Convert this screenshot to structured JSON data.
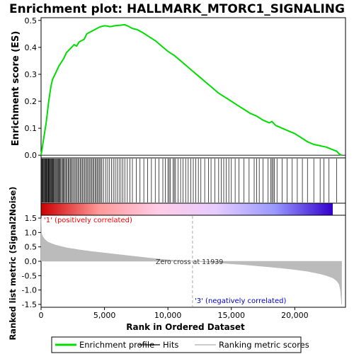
{
  "chart_data": {
    "type": "line",
    "title": "Enrichment plot: HALLMARK_MTORC1_SIGNALING",
    "xlabel": "Rank in Ordered Dataset",
    "xlim": [
      0,
      24000
    ],
    "x_ticks": [
      0,
      5000,
      10000,
      15000,
      20000
    ],
    "x_tick_labels": [
      "0",
      "5,000",
      "10,000",
      "15,000",
      "20,000"
    ],
    "top_panel": {
      "ylabel": "Enrichment score (ES)",
      "ylim": [
        -0.01,
        0.51
      ],
      "y_ticks": [
        0.0,
        0.1,
        0.2,
        0.3,
        0.4,
        0.5
      ],
      "y_tick_labels": [
        "0.0",
        "0.1",
        "0.2",
        "0.3",
        "0.4",
        "0.5"
      ],
      "series_name": "Enrichment profile",
      "series_color": "#00dd00",
      "x": [
        0,
        100,
        200,
        300,
        400,
        500,
        600,
        700,
        800,
        900,
        1000,
        1200,
        1400,
        1600,
        1800,
        2000,
        2200,
        2400,
        2600,
        2800,
        3000,
        3200,
        3400,
        3600,
        3800,
        4000,
        4200,
        4400,
        4600,
        4800,
        5000,
        5200,
        5400,
        5600,
        5800,
        6000,
        6200,
        6400,
        6600,
        6800,
        7000,
        7200,
        7400,
        7600,
        8000,
        8500,
        9000,
        9500,
        10000,
        10500,
        11000,
        11500,
        12000,
        12500,
        13000,
        13500,
        14000,
        14500,
        15000,
        15500,
        16000,
        16500,
        17000,
        17500,
        18000,
        18200,
        18500,
        19000,
        19500,
        20000,
        20500,
        21000,
        21500,
        22000,
        22500,
        23000,
        23300,
        23500,
        23700
      ],
      "y": [
        0.0,
        0.03,
        0.06,
        0.09,
        0.12,
        0.16,
        0.2,
        0.23,
        0.26,
        0.28,
        0.29,
        0.31,
        0.33,
        0.345,
        0.36,
        0.38,
        0.39,
        0.4,
        0.41,
        0.405,
        0.42,
        0.425,
        0.43,
        0.45,
        0.455,
        0.46,
        0.465,
        0.47,
        0.475,
        0.478,
        0.48,
        0.479,
        0.477,
        0.478,
        0.48,
        0.481,
        0.482,
        0.483,
        0.484,
        0.48,
        0.475,
        0.47,
        0.468,
        0.465,
        0.455,
        0.44,
        0.425,
        0.405,
        0.385,
        0.37,
        0.35,
        0.33,
        0.31,
        0.29,
        0.27,
        0.25,
        0.23,
        0.215,
        0.2,
        0.185,
        0.17,
        0.155,
        0.145,
        0.13,
        0.12,
        0.125,
        0.11,
        0.1,
        0.09,
        0.08,
        0.065,
        0.05,
        0.04,
        0.035,
        0.03,
        0.02,
        0.015,
        0.005,
        0.0
      ]
    },
    "hits_panel": {
      "series_name": "Hits",
      "hit_ranks": [
        20,
        60,
        110,
        150,
        200,
        250,
        300,
        340,
        390,
        430,
        480,
        520,
        570,
        610,
        660,
        700,
        750,
        800,
        850,
        900,
        950,
        1000,
        1060,
        1120,
        1180,
        1240,
        1300,
        1360,
        1420,
        1480,
        1550,
        1620,
        1690,
        1760,
        1830,
        1900,
        1980,
        2060,
        2140,
        2220,
        2300,
        2380,
        2460,
        2550,
        2640,
        2730,
        2820,
        2910,
        3000,
        3090,
        3180,
        3270,
        3360,
        3450,
        3540,
        3630,
        3720,
        3810,
        3900,
        3990,
        4080,
        4170,
        4260,
        4350,
        4440,
        4530,
        4620,
        4710,
        4800,
        4950,
        5100,
        5250,
        5400,
        5550,
        5700,
        5850,
        6000,
        6150,
        6300,
        6450,
        6600,
        6800,
        7000,
        7200,
        7500,
        7800,
        8100,
        8400,
        8700,
        9000,
        9300,
        9600,
        9800,
        10000,
        10100,
        10200,
        10400,
        10500,
        10600,
        10800,
        11000,
        11200,
        11400,
        11600,
        11800,
        12000,
        12200,
        12400,
        12600,
        12900,
        13200,
        13400,
        13700,
        14000,
        14200,
        14400,
        14600,
        14800,
        15000,
        15300,
        15600,
        16000,
        16400,
        16800,
        17000,
        17200,
        17500,
        17900,
        18100,
        18200,
        18300,
        18400,
        18600,
        19000,
        19400,
        19800,
        20200,
        20600,
        21000,
        21500,
        22000,
        22300,
        22700,
        23300
      ]
    },
    "color_bar": {
      "labels": [
        "'1' (positively correlated)",
        "'3' (negatively correlated)"
      ],
      "label_colors": [
        "#ff0000",
        "#0000cc"
      ],
      "stops": [
        "#cc0000",
        "#ff9999",
        "#ffcce6",
        "#e6ccff",
        "#9999ff",
        "#3300cc"
      ]
    },
    "bottom_panel": {
      "ylabel": "Ranked list metric (Signal2Noise)",
      "ylim": [
        -1.6,
        1.6
      ],
      "y_ticks": [
        -1.5,
        -1.0,
        -0.5,
        0.0,
        0.5,
        1.0,
        1.5
      ],
      "y_tick_labels": [
        "-1.5",
        "-1.0",
        "-0.5",
        "0.0",
        "0.5",
        "1.0",
        "1.5"
      ],
      "series_name": "Ranking metric scores",
      "fill_color": "#bbbbbb",
      "x": [
        0,
        50,
        150,
        300,
        500,
        800,
        1200,
        2000,
        3000,
        4000,
        5000,
        6000,
        7000,
        8000,
        9000,
        10000,
        11000,
        11939,
        13000,
        14000,
        15000,
        16000,
        17000,
        18000,
        19000,
        20000,
        21000,
        22000,
        22500,
        23000,
        23300,
        23500,
        23600,
        23700
      ],
      "y": [
        1.5,
        0.95,
        0.85,
        0.76,
        0.68,
        0.62,
        0.56,
        0.47,
        0.4,
        0.34,
        0.29,
        0.24,
        0.19,
        0.14,
        0.09,
        0.05,
        0.02,
        0.0,
        -0.03,
        -0.06,
        -0.09,
        -0.12,
        -0.16,
        -0.2,
        -0.24,
        -0.29,
        -0.35,
        -0.44,
        -0.5,
        -0.58,
        -0.68,
        -0.8,
        -1.0,
        -1.5
      ]
    },
    "zero_cross_label": "Zero cross at 11939",
    "zero_cross_rank": 11939,
    "legend": {
      "placement": "bottom",
      "items": [
        {
          "label": "Enrichment profile",
          "color": "#00dd00",
          "kind": "line"
        },
        {
          "label": "Hits",
          "color": "#000000",
          "kind": "line"
        },
        {
          "label": "Ranking metric scores",
          "color": "#bbbbbb",
          "kind": "line"
        }
      ]
    }
  }
}
